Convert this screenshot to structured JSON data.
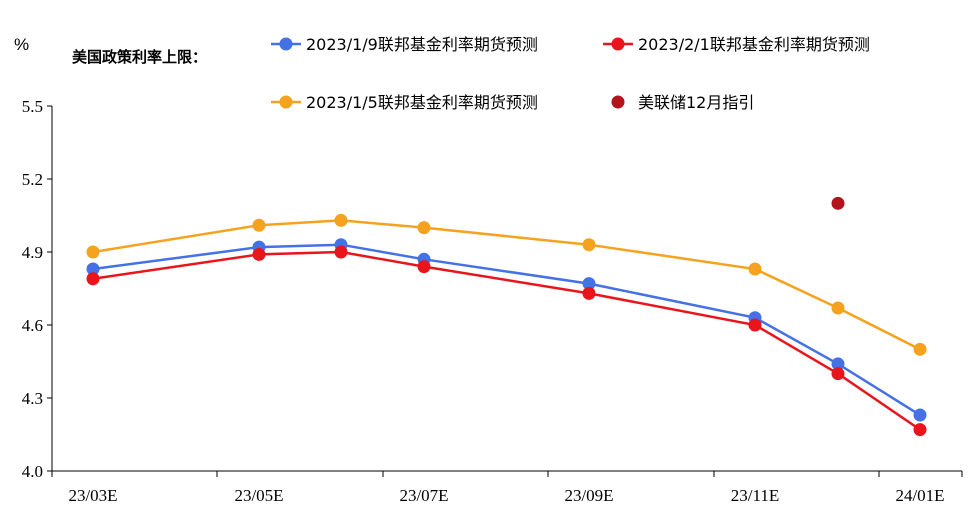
{
  "chart_data": {
    "type": "line",
    "title": "美国政策利率上限：",
    "ylabel": "%",
    "xlabel": "",
    "ylim": [
      4.0,
      5.5
    ],
    "yticks": [
      "4.0",
      "4.3",
      "4.6",
      "4.9",
      "5.2",
      "5.5"
    ],
    "x_tick_labels": [
      "23/03E",
      "23/05E",
      "23/07E",
      "23/09E",
      "23/11E",
      "24/01E"
    ],
    "x": [
      "23/03E",
      "23/05E",
      "23/06E",
      "23/07E",
      "23/09E",
      "23/11E",
      "23/12E",
      "24/01E"
    ],
    "grid": false,
    "legend": "top",
    "series": [
      {
        "name": "2023/1/9联邦基金利率期货预测",
        "color": "#4472e6",
        "values": [
          4.83,
          4.92,
          4.93,
          4.87,
          4.77,
          4.63,
          4.44,
          4.23
        ]
      },
      {
        "name": "2023/2/1联邦基金利率期货预测",
        "color": "#e8151c",
        "values": [
          4.79,
          4.89,
          4.9,
          4.84,
          4.73,
          4.6,
          4.4,
          4.17
        ]
      },
      {
        "name": "2023/1/5联邦基金利率期货预测",
        "color": "#f5a31e",
        "values": [
          4.9,
          5.01,
          5.03,
          5.0,
          4.93,
          4.83,
          4.67,
          4.5
        ]
      },
      {
        "name": "美联储12月指引",
        "color": "#b3141c",
        "type": "scatter",
        "points": [
          {
            "x": "23/12E",
            "y": 5.1
          }
        ]
      }
    ]
  }
}
